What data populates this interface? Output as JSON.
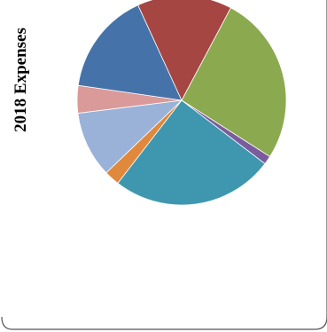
{
  "chart_data": {
    "type": "pie",
    "title": "2018 Expenses",
    "slices": [
      {
        "value": 27.8,
        "color": "#8BA94E"
      },
      {
        "value": 1.4,
        "color": "#7A5C9E"
      },
      {
        "value": 26.6,
        "color": "#3F97AF"
      },
      {
        "value": 2.5,
        "color": "#E0883C"
      },
      {
        "value": 10.8,
        "color": "#9AB2D8"
      },
      {
        "value": 4.5,
        "color": "#D99A99"
      },
      {
        "value": 16.8,
        "color": "#4573A9"
      },
      {
        "value": 15.5,
        "color": "#A54643"
      }
    ],
    "legend": "none",
    "start_angle_deg": 62,
    "direction": "clockwise"
  }
}
